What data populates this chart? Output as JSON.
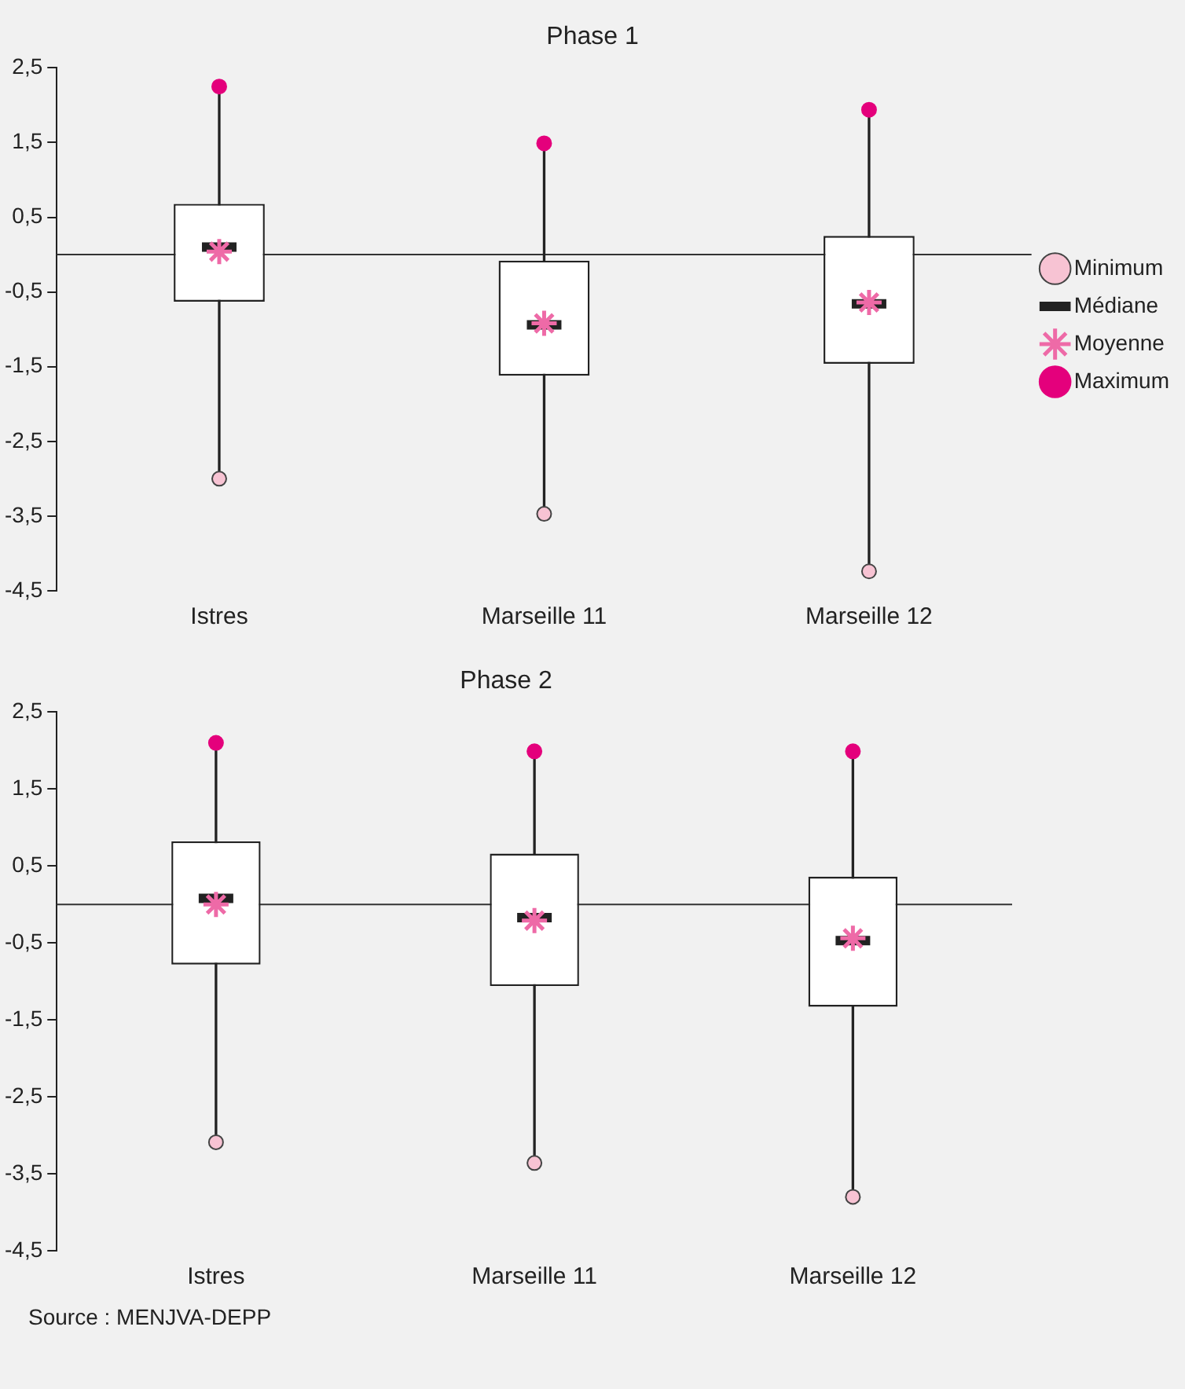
{
  "chart_data": [
    {
      "type": "box",
      "title": "Phase 1",
      "categories": [
        "Istres",
        "Marseille 11",
        "Marseille 12"
      ],
      "series": [
        {
          "name": "Minimum",
          "type": "scatter",
          "marker": "circle",
          "color": "#f7c3d3",
          "values": [
            -3.0,
            -3.47,
            -4.24
          ]
        },
        {
          "name": "Médiane",
          "type": "box",
          "color": "#222222",
          "boxes": [
            {
              "low": -3.0,
              "q1": -0.63,
              "median": 0.1,
              "q3": 0.68,
              "high": 2.25
            },
            {
              "low": -3.47,
              "q1": -1.62,
              "median": -0.94,
              "q3": -0.08,
              "high": 1.49
            },
            {
              "low": -4.24,
              "q1": -1.46,
              "median": -0.66,
              "q3": 0.25,
              "high": 1.94
            }
          ]
        },
        {
          "name": "Moyenne",
          "type": "scatter",
          "marker": "cross",
          "color": "#ee6aa7",
          "values": [
            0.04,
            -0.92,
            -0.64
          ]
        },
        {
          "name": "Maximum",
          "type": "scatter",
          "marker": "circle",
          "color": "#e4007c",
          "values": [
            2.25,
            1.49,
            1.94
          ]
        }
      ],
      "ylim": [
        -4.5,
        2.5
      ],
      "yticks": [
        {
          "value": 2.5,
          "label": "2,5"
        },
        {
          "value": 1.5,
          "label": "1,5"
        },
        {
          "value": 0.5,
          "label": "0,5"
        },
        {
          "value": -0.5,
          "label": "-0,5"
        },
        {
          "value": -1.5,
          "label": "-1,5"
        },
        {
          "value": -2.5,
          "label": "-2,5"
        },
        {
          "value": -3.5,
          "label": "-3,5"
        },
        {
          "value": -4.5,
          "label": "-4,5"
        }
      ],
      "ref_lines": [
        {
          "axis": "y",
          "value": 0,
          "color": "#333333"
        }
      ],
      "legend": "right",
      "grid": false
    },
    {
      "type": "box",
      "title": "Phase 2",
      "categories": [
        "Istres",
        "Marseille 11",
        "Marseille 12"
      ],
      "series": [
        {
          "type": "scatter",
          "marker": "circle",
          "color": "#f7c3d3",
          "values": [
            -3.09,
            -3.36,
            -3.8
          ]
        },
        {
          "type": "box",
          "color": "#222222",
          "boxes": [
            {
              "low": -3.09,
              "q1": -0.78,
              "median": 0.08,
              "q3": 0.82,
              "high": 2.1
            },
            {
              "low": -3.36,
              "q1": -1.06,
              "median": -0.17,
              "q3": 0.66,
              "high": 1.99
            },
            {
              "low": -3.8,
              "q1": -1.33,
              "median": -0.47,
              "q3": 0.36,
              "high": 1.99
            }
          ]
        },
        {
          "type": "scatter",
          "marker": "cross",
          "color": "#ee6aa7",
          "values": [
            0.0,
            -0.21,
            -0.44
          ]
        },
        {
          "type": "scatter",
          "marker": "circle",
          "color": "#e4007c",
          "values": [
            2.1,
            1.99,
            1.99
          ]
        }
      ],
      "ylim": [
        -4.5,
        2.5
      ],
      "yticks": [
        {
          "value": 2.5,
          "label": "2,5"
        },
        {
          "value": 1.5,
          "label": "1,5"
        },
        {
          "value": 0.5,
          "label": "0,5"
        },
        {
          "value": -0.5,
          "label": "-0,5"
        },
        {
          "value": -1.5,
          "label": "-1,5"
        },
        {
          "value": -2.5,
          "label": "-2,5"
        },
        {
          "value": -3.5,
          "label": "-3,5"
        },
        {
          "value": -4.5,
          "label": "-4,5"
        }
      ],
      "ref_lines": [
        {
          "axis": "y",
          "value": 0,
          "color": "#333333"
        }
      ],
      "annotations": [
        "Source : MENJVA-DEPP"
      ],
      "legend": false,
      "grid": false
    }
  ]
}
